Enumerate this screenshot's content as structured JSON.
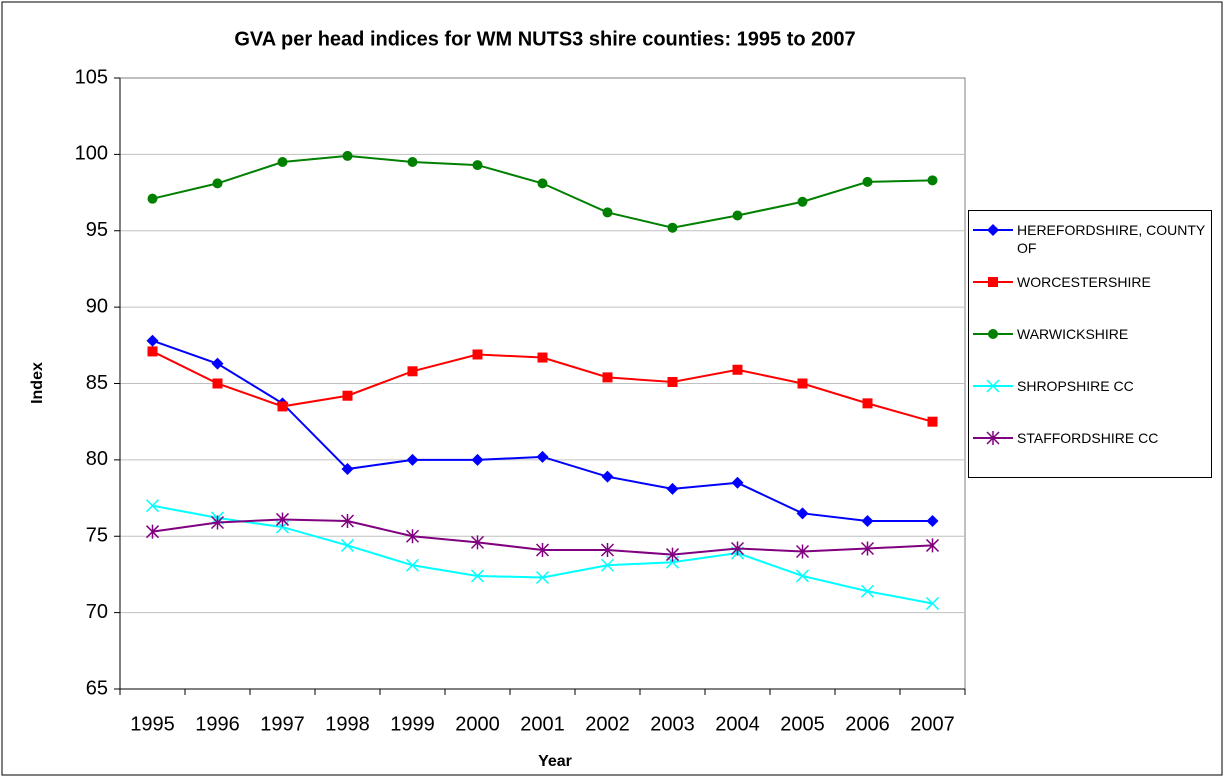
{
  "chart_data": {
    "type": "line",
    "title": "GVA per head indices for WM NUTS3 shire counties: 1995 to 2007",
    "x_label": "Year",
    "y_label": "Index",
    "categories": [
      "1995",
      "1996",
      "1997",
      "1998",
      "1999",
      "2000",
      "2001",
      "2002",
      "2003",
      "2004",
      "2005",
      "2006",
      "2007"
    ],
    "series": [
      {
        "name": "HEREFORDSHIRE, COUNTY OF",
        "color": "#0000ff",
        "marker": "diamond",
        "values": [
          87.8,
          86.3,
          83.7,
          79.4,
          80.0,
          80.0,
          80.2,
          78.9,
          78.1,
          78.5,
          76.5,
          76.0,
          76.0
        ]
      },
      {
        "name": "WORCESTERSHIRE",
        "color": "#ff0000",
        "marker": "square",
        "values": [
          87.1,
          85.0,
          83.5,
          84.2,
          85.8,
          86.9,
          86.7,
          85.4,
          85.1,
          85.9,
          85.0,
          83.7,
          82.5
        ]
      },
      {
        "name": "WARWICKSHIRE",
        "color": "#008000",
        "marker": "circle",
        "values": [
          97.1,
          98.1,
          99.5,
          99.9,
          99.5,
          99.3,
          98.1,
          96.2,
          95.2,
          96.0,
          96.9,
          98.2,
          98.3
        ]
      },
      {
        "name": "SHROPSHIRE CC",
        "color": "#00ffff",
        "marker": "x",
        "values": [
          77.0,
          76.2,
          75.6,
          74.4,
          73.1,
          72.4,
          72.3,
          73.1,
          73.3,
          73.9,
          72.4,
          71.4,
          70.6
        ]
      },
      {
        "name": "STAFFORDSHIRE CC",
        "color": "#800080",
        "marker": "star",
        "values": [
          75.3,
          75.9,
          76.1,
          76.0,
          75.0,
          74.6,
          74.1,
          74.1,
          73.8,
          74.2,
          74.0,
          74.2,
          74.4
        ]
      }
    ],
    "ylim": [
      65,
      105
    ],
    "yticks": [
      65,
      70,
      75,
      80,
      85,
      90,
      95,
      100,
      105
    ],
    "grid": true,
    "legend": "right"
  }
}
